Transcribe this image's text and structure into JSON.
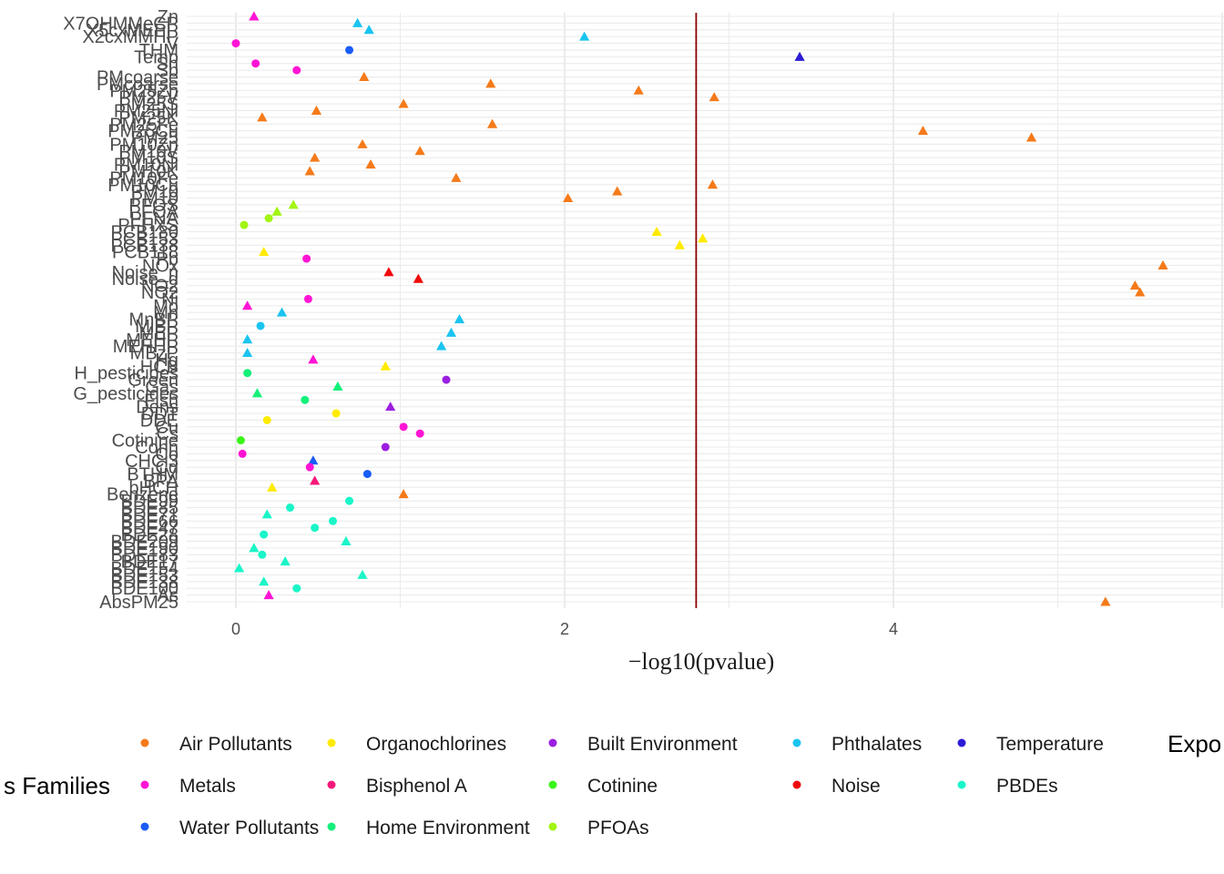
{
  "chart_data": {
    "type": "scatter",
    "xlabel": "−log10(pvalue)",
    "ylabel": "",
    "xlim": [
      -0.3,
      5.8
    ],
    "x_ticks": [
      0,
      2,
      4
    ],
    "threshold_x": 2.8,
    "grid": true,
    "shape_legend_title": "Expo",
    "color_legend_title": "s Families",
    "families": [
      {
        "name": "Air Pollutants",
        "color": "#F57A1A"
      },
      {
        "name": "Organochlorines",
        "color": "#FFEB00"
      },
      {
        "name": "Built Environment",
        "color": "#9B1FE0"
      },
      {
        "name": "Phthalates",
        "color": "#1AC4F0"
      },
      {
        "name": "Temperature",
        "color": "#2D1BD6"
      },
      {
        "name": "Metals",
        "color": "#FF14D4"
      },
      {
        "name": "Bisphenol A",
        "color": "#F5177A"
      },
      {
        "name": "Cotinine",
        "color": "#3AF51A"
      },
      {
        "name": "Noise",
        "color": "#F00A0A"
      },
      {
        "name": "PBDEs",
        "color": "#1AF5C8"
      },
      {
        "name": "Water Pollutants",
        "color": "#1A5CF5"
      },
      {
        "name": "Home Environment",
        "color": "#14F07A"
      },
      {
        "name": "PFOAs",
        "color": "#A2F514"
      }
    ],
    "exposures": [
      {
        "label": "Zn",
        "x": 0.11,
        "family": "Metals",
        "shape": "triangle"
      },
      {
        "label": "X7OHMMeCP",
        "x": 0.74,
        "family": "Phthalates",
        "shape": "triangle"
      },
      {
        "label": "X5cxMEPP",
        "x": 0.81,
        "family": "Phthalates",
        "shape": "triangle"
      },
      {
        "label": "X2cxMMHP",
        "x": 2.12,
        "family": "Phthalates",
        "shape": "triangle"
      },
      {
        "label": "V",
        "x": 0.0,
        "family": "Metals",
        "shape": "circle"
      },
      {
        "label": "THM",
        "x": 0.69,
        "family": "Water Pollutants",
        "shape": "circle"
      },
      {
        "label": "Temp",
        "x": 3.43,
        "family": "Temperature",
        "shape": "triangle"
      },
      {
        "label": "Sn",
        "x": 0.12,
        "family": "Metals",
        "shape": "circle"
      },
      {
        "label": "Sb",
        "x": 0.37,
        "family": "Metals",
        "shape": "circle"
      },
      {
        "label": "PMcoarse",
        "x": 0.78,
        "family": "Air Pollutants",
        "shape": "triangle"
      },
      {
        "label": "PMcoarse",
        "x": 1.55,
        "family": "Air Pollutants",
        "shape": "triangle"
      },
      {
        "label": "PM25Zn",
        "x": 2.45,
        "family": "Air Pollutants",
        "shape": "triangle"
      },
      {
        "label": "PM25V",
        "x": 2.91,
        "family": "Air Pollutants",
        "shape": "triangle"
      },
      {
        "label": "PM25S",
        "x": 1.02,
        "family": "Air Pollutants",
        "shape": "triangle"
      },
      {
        "label": "PM25Ni",
        "x": 0.49,
        "family": "Air Pollutants",
        "shape": "triangle"
      },
      {
        "label": "PM25K",
        "x": 0.16,
        "family": "Air Pollutants",
        "shape": "triangle"
      },
      {
        "label": "PM25Fe",
        "x": 1.56,
        "family": "Air Pollutants",
        "shape": "triangle"
      },
      {
        "label": "PM25Cu",
        "x": 4.18,
        "family": "Air Pollutants",
        "shape": "triangle"
      },
      {
        "label": "PM25",
        "x": 4.84,
        "family": "Air Pollutants",
        "shape": "triangle"
      },
      {
        "label": "PM10Zn",
        "x": 0.77,
        "family": "Air Pollutants",
        "shape": "triangle"
      },
      {
        "label": "PM10V",
        "x": 1.12,
        "family": "Air Pollutants",
        "shape": "triangle"
      },
      {
        "label": "PM10S",
        "x": 0.48,
        "family": "Air Pollutants",
        "shape": "triangle"
      },
      {
        "label": "PM10Ni",
        "x": 0.82,
        "family": "Air Pollutants",
        "shape": "triangle"
      },
      {
        "label": "PM10K",
        "x": 0.45,
        "family": "Air Pollutants",
        "shape": "triangle"
      },
      {
        "label": "PM10Fe",
        "x": 1.34,
        "family": "Air Pollutants",
        "shape": "triangle"
      },
      {
        "label": "PM10Cu",
        "x": 2.9,
        "family": "Air Pollutants",
        "shape": "triangle"
      },
      {
        "label": "PM10",
        "x": 2.32,
        "family": "Air Pollutants",
        "shape": "triangle"
      },
      {
        "label": "PM10",
        "x": 2.02,
        "family": "Air Pollutants",
        "shape": "triangle"
      },
      {
        "label": "PFOS",
        "x": 0.35,
        "family": "PFOAs",
        "shape": "triangle"
      },
      {
        "label": "PFOA",
        "x": 0.25,
        "family": "PFOAs",
        "shape": "triangle"
      },
      {
        "label": "PFNA",
        "x": 0.2,
        "family": "PFOAs",
        "shape": "circle"
      },
      {
        "label": "PFHXS",
        "x": 0.05,
        "family": "PFOAs",
        "shape": "circle"
      },
      {
        "label": "PCB180",
        "x": 2.56,
        "family": "Organochlorines",
        "shape": "triangle"
      },
      {
        "label": "PCB153",
        "x": 2.84,
        "family": "Organochlorines",
        "shape": "triangle"
      },
      {
        "label": "PCB138",
        "x": 2.7,
        "family": "Organochlorines",
        "shape": "triangle"
      },
      {
        "label": "PCB118",
        "x": 0.17,
        "family": "Organochlorines",
        "shape": "triangle"
      },
      {
        "label": "Pb",
        "x": 0.43,
        "family": "Metals",
        "shape": "circle"
      },
      {
        "label": "NOx",
        "x": 5.64,
        "family": "Air Pollutants",
        "shape": "triangle"
      },
      {
        "label": "Noise_n",
        "x": 0.93,
        "family": "Noise",
        "shape": "triangle"
      },
      {
        "label": "Noise_d",
        "x": 1.11,
        "family": "Noise",
        "shape": "triangle"
      },
      {
        "label": "NO2",
        "x": 5.47,
        "family": "Air Pollutants",
        "shape": "triangle"
      },
      {
        "label": "NO2",
        "x": 5.5,
        "family": "Air Pollutants",
        "shape": "triangle"
      },
      {
        "label": "Ni",
        "x": 0.44,
        "family": "Metals",
        "shape": "circle"
      },
      {
        "label": "Mo",
        "x": 0.07,
        "family": "Metals",
        "shape": "triangle"
      },
      {
        "label": "Mn",
        "x": 0.28,
        "family": "Phthalates",
        "shape": "triangle"
      },
      {
        "label": "MnBP",
        "x": 1.36,
        "family": "Phthalates",
        "shape": "triangle"
      },
      {
        "label": "MiBP",
        "x": 0.15,
        "family": "Phthalates",
        "shape": "circle"
      },
      {
        "label": "MEP",
        "x": 1.31,
        "family": "Phthalates",
        "shape": "triangle"
      },
      {
        "label": "MEHP",
        "x": 0.07,
        "family": "Phthalates",
        "shape": "triangle"
      },
      {
        "label": "MEHHP",
        "x": 1.25,
        "family": "Phthalates",
        "shape": "triangle"
      },
      {
        "label": "MBzP",
        "x": 0.07,
        "family": "Phthalates",
        "shape": "triangle"
      },
      {
        "label": "Hg",
        "x": 0.47,
        "family": "Metals",
        "shape": "triangle"
      },
      {
        "label": "HCB",
        "x": 0.91,
        "family": "Organochlorines",
        "shape": "triangle"
      },
      {
        "label": "H_pesticides",
        "x": 0.07,
        "family": "Home Environment",
        "shape": "circle"
      },
      {
        "label": "Green",
        "x": 1.28,
        "family": "Built Environment",
        "shape": "circle"
      },
      {
        "label": "Gas",
        "x": 0.62,
        "family": "Home Environment",
        "shape": "triangle"
      },
      {
        "label": "G_pesticides",
        "x": 0.13,
        "family": "Home Environment",
        "shape": "triangle"
      },
      {
        "label": "Fish",
        "x": 0.42,
        "family": "Home Environment",
        "shape": "circle"
      },
      {
        "label": "Dens",
        "x": 0.94,
        "family": "Built Environment",
        "shape": "triangle"
      },
      {
        "label": "DDT",
        "x": 0.61,
        "family": "Organochlorines",
        "shape": "circle"
      },
      {
        "label": "DDE",
        "x": 0.19,
        "family": "Organochlorines",
        "shape": "circle"
      },
      {
        "label": "Cu",
        "x": 1.02,
        "family": "Metals",
        "shape": "circle"
      },
      {
        "label": "Cs",
        "x": 1.12,
        "family": "Metals",
        "shape": "circle"
      },
      {
        "label": "Cotinine",
        "x": 0.03,
        "family": "Cotinine",
        "shape": "circle"
      },
      {
        "label": "Conn",
        "x": 0.91,
        "family": "Built Environment",
        "shape": "circle"
      },
      {
        "label": "Co",
        "x": 0.04,
        "family": "Metals",
        "shape": "circle"
      },
      {
        "label": "CHCl3",
        "x": 0.47,
        "family": "Water Pollutants",
        "shape": "triangle"
      },
      {
        "label": "Cd",
        "x": 0.45,
        "family": "Metals",
        "shape": "circle"
      },
      {
        "label": "BTHM",
        "x": 0.8,
        "family": "Water Pollutants",
        "shape": "circle"
      },
      {
        "label": "BPA",
        "x": 0.48,
        "family": "Bisphenol A",
        "shape": "triangle"
      },
      {
        "label": "bHCH",
        "x": 0.22,
        "family": "Organochlorines",
        "shape": "triangle"
      },
      {
        "label": "Benzene",
        "x": 1.02,
        "family": "Air Pollutants",
        "shape": "triangle"
      },
      {
        "label": "BDE99",
        "x": 0.69,
        "family": "PBDEs",
        "shape": "circle"
      },
      {
        "label": "BDE85",
        "x": 0.33,
        "family": "PBDEs",
        "shape": "circle"
      },
      {
        "label": "BDE71",
        "x": 0.19,
        "family": "PBDEs",
        "shape": "triangle"
      },
      {
        "label": "BDE66",
        "x": 0.59,
        "family": "PBDEs",
        "shape": "circle"
      },
      {
        "label": "BDE47",
        "x": 0.48,
        "family": "PBDEs",
        "shape": "circle"
      },
      {
        "label": "BDE28",
        "x": 0.17,
        "family": "PBDEs",
        "shape": "circle"
      },
      {
        "label": "BDE209",
        "x": 0.67,
        "family": "PBDEs",
        "shape": "triangle"
      },
      {
        "label": "BDE190",
        "x": 0.11,
        "family": "PBDEs",
        "shape": "triangle"
      },
      {
        "label": "BDE183",
        "x": 0.16,
        "family": "PBDEs",
        "shape": "circle"
      },
      {
        "label": "BDE17",
        "x": 0.3,
        "family": "PBDEs",
        "shape": "triangle"
      },
      {
        "label": "BDE154",
        "x": 0.02,
        "family": "PBDEs",
        "shape": "triangle"
      },
      {
        "label": "BDE153",
        "x": 0.77,
        "family": "PBDEs",
        "shape": "triangle"
      },
      {
        "label": "BDE138",
        "x": 0.17,
        "family": "PBDEs",
        "shape": "triangle"
      },
      {
        "label": "BDE100",
        "x": 0.37,
        "family": "PBDEs",
        "shape": "circle"
      },
      {
        "label": "As",
        "x": 0.2,
        "family": "Metals",
        "shape": "triangle"
      },
      {
        "label": "AbsPM25",
        "x": 5.29,
        "family": "Air Pollutants",
        "shape": "triangle"
      }
    ]
  }
}
